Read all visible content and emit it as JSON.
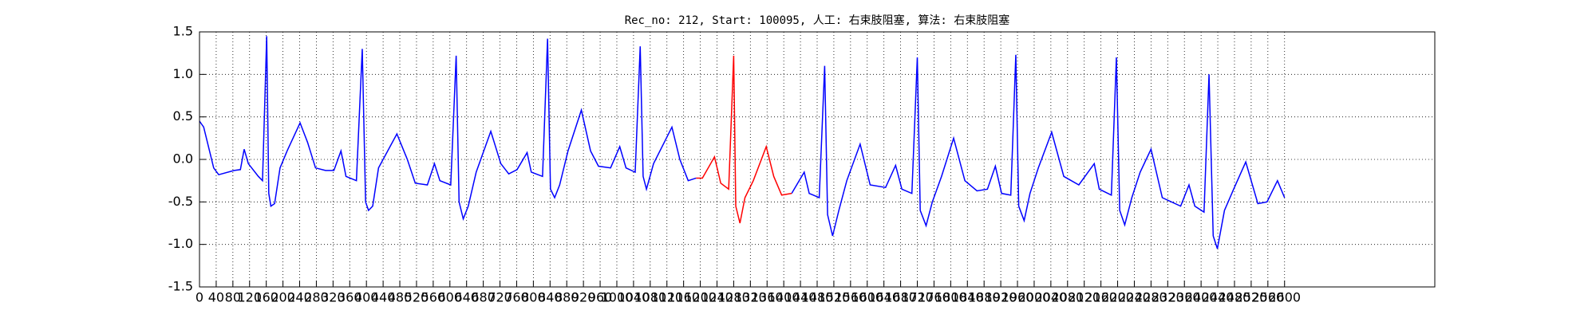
{
  "chart_data": {
    "type": "line",
    "title": "Rec_no: 212, Start: 100095, 人工: 右束肢阻塞, 算法: 右束肢阻塞",
    "x": [
      0,
      10,
      34,
      46,
      83,
      98,
      107,
      117,
      141,
      151,
      161,
      166,
      171,
      180,
      193,
      210,
      241,
      259,
      278,
      302,
      322,
      339,
      351,
      376,
      390,
      398,
      405,
      415,
      429,
      473,
      498,
      517,
      546,
      563,
      576,
      602,
      615,
      622,
      632,
      644,
      663,
      698,
      722,
      741,
      761,
      785,
      795,
      822,
      834,
      841,
      851,
      863,
      883,
      915,
      937,
      956,
      985,
      1007,
      1022,
      1044,
      1056,
      1063,
      1071,
      1088,
      1132,
      1151,
      1171,
      1190,
      1205,
      1234,
      1249,
      1268,
      1280,
      1285,
      1295,
      1307,
      1327,
      1358,
      1376,
      1395,
      1419,
      1449,
      1461,
      1485,
      1498,
      1505,
      1517,
      1532,
      1551,
      1583,
      1607,
      1644,
      1668,
      1683,
      1707,
      1720,
      1727,
      1741,
      1756,
      1778,
      1807,
      1834,
      1863,
      1888,
      1907,
      1922,
      1944,
      1956,
      1963,
      1976,
      1990,
      2010,
      2042,
      2071,
      2107,
      2144,
      2156,
      2185,
      2197,
      2205,
      2217,
      2234,
      2254,
      2280,
      2307,
      2351,
      2371,
      2385,
      2407,
      2419,
      2429,
      2439,
      2456,
      2478,
      2507,
      2536,
      2558,
      2583,
      2600
    ],
    "series": [
      {
        "color": "#0000ff",
        "values": [
          0.45,
          0.38,
          -0.1,
          -0.18,
          -0.13,
          -0.12,
          0.12,
          -0.05,
          -0.2,
          -0.25,
          1.45,
          -0.4,
          -0.55,
          -0.52,
          -0.1,
          0.1,
          0.43,
          0.2,
          -0.1,
          -0.13,
          -0.13,
          0.1,
          -0.2,
          -0.25,
          1.3,
          -0.5,
          -0.6,
          -0.55,
          -0.1,
          0.3,
          0.0,
          -0.28,
          -0.3,
          -0.05,
          -0.25,
          -0.3,
          1.22,
          -0.5,
          -0.7,
          -0.55,
          -0.15,
          0.33,
          -0.05,
          -0.17,
          -0.12,
          0.08,
          -0.15,
          -0.2,
          1.42,
          -0.35,
          -0.45,
          -0.3,
          0.1,
          0.58,
          0.1,
          -0.08,
          -0.1,
          0.15,
          -0.1,
          -0.15,
          1.33,
          -0.2,
          -0.35,
          -0.05,
          0.38,
          0.0,
          -0.25,
          -0.22,
          null,
          null,
          null,
          null,
          null,
          null,
          null,
          null,
          null,
          null,
          null,
          null,
          -0.4,
          -0.15,
          -0.4,
          -0.45,
          1.1,
          -0.65,
          -0.9,
          -0.6,
          -0.25,
          0.18,
          -0.3,
          -0.33,
          -0.07,
          -0.35,
          -0.4,
          1.2,
          -0.6,
          -0.78,
          -0.5,
          -0.2,
          0.25,
          -0.25,
          -0.37,
          -0.35,
          -0.08,
          -0.4,
          -0.42,
          1.23,
          -0.55,
          -0.72,
          -0.4,
          -0.1,
          0.32,
          -0.2,
          -0.3,
          -0.05,
          -0.35,
          -0.42,
          1.2,
          -0.6,
          -0.77,
          -0.45,
          -0.15,
          0.12,
          -0.45,
          -0.55,
          -0.3,
          -0.55,
          -0.62,
          1.0,
          -0.9,
          -1.05,
          -0.6,
          -0.35,
          -0.03,
          -0.52,
          -0.5,
          -0.25,
          -0.45
        ]
      },
      {
        "color": "#ff0000",
        "values": [
          null,
          null,
          null,
          null,
          null,
          null,
          null,
          null,
          null,
          null,
          null,
          null,
          null,
          null,
          null,
          null,
          null,
          null,
          null,
          null,
          null,
          null,
          null,
          null,
          null,
          null,
          null,
          null,
          null,
          null,
          null,
          null,
          null,
          null,
          null,
          null,
          null,
          null,
          null,
          null,
          null,
          null,
          null,
          null,
          null,
          null,
          null,
          null,
          null,
          null,
          null,
          null,
          null,
          null,
          null,
          null,
          null,
          null,
          null,
          null,
          null,
          null,
          null,
          null,
          null,
          null,
          null,
          -0.22,
          -0.22,
          0.03,
          -0.28,
          -0.35,
          1.22,
          -0.55,
          -0.75,
          -0.45,
          -0.25,
          0.15,
          -0.2,
          -0.42,
          -0.4,
          null,
          null,
          null,
          null,
          null,
          null,
          null,
          null,
          null,
          null,
          null,
          null,
          null,
          null,
          null,
          null,
          null,
          null,
          null,
          null,
          null,
          null,
          null,
          null,
          null,
          null,
          null,
          null,
          null,
          null,
          null,
          null,
          null,
          null,
          null,
          null,
          null,
          null,
          null,
          null,
          null,
          null,
          null,
          null,
          null,
          null,
          null,
          null,
          null,
          null,
          null,
          null,
          null,
          null,
          null,
          null,
          null,
          null
        ]
      }
    ],
    "xlim": [
      0,
      2960
    ],
    "xticks": [
      0,
      40,
      80,
      120,
      160,
      200,
      240,
      280,
      320,
      360,
      400,
      440,
      480,
      520,
      560,
      600,
      640,
      680,
      720,
      760,
      800,
      840,
      880,
      920,
      960,
      1000,
      1040,
      1080,
      1120,
      1160,
      1200,
      1240,
      1280,
      1320,
      1360,
      1400,
      1440,
      1480,
      1520,
      1560,
      1600,
      1640,
      1680,
      1720,
      1760,
      1800,
      1840,
      1880,
      1920,
      1960,
      2000,
      2040,
      2080,
      2120,
      2160,
      2200,
      2240,
      2280,
      2320,
      2360,
      2400,
      2440,
      2480,
      2520,
      2560,
      2600
    ],
    "ylim": [
      -1.5,
      1.5
    ],
    "yticks": [
      -1.5,
      {
        "value": -1,
        "label": "-1.0"
      },
      -0.5,
      {
        "value": 0,
        "label": "0.0"
      },
      0.5,
      {
        "value": 1,
        "label": "1.0"
      },
      1.5
    ],
    "grid": true
  }
}
